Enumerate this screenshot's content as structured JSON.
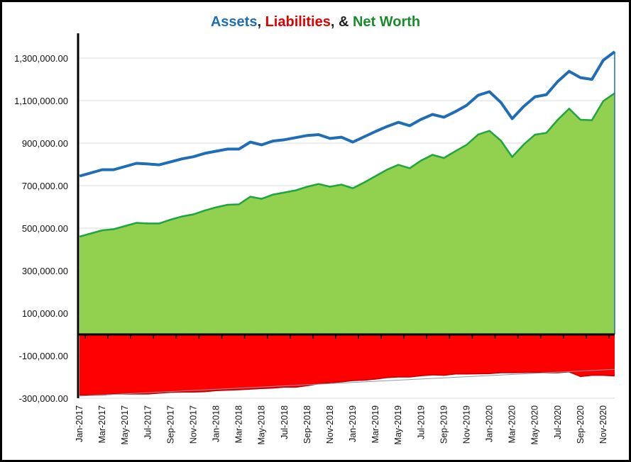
{
  "chart_data": {
    "type": "area",
    "title_parts": [
      {
        "text": "Assets",
        "color": "#1f6db5"
      },
      {
        "text": ", ",
        "color": "#222222"
      },
      {
        "text": "Liabilities",
        "color": "#e00000"
      },
      {
        "text": ", & ",
        "color": "#222222"
      },
      {
        "text": "Net Worth",
        "color": "#1a8a2a"
      }
    ],
    "xlabel": "",
    "ylabel": "",
    "ylim": [
      -300000,
      1400000
    ],
    "y_ticks": [
      1300000,
      1100000,
      900000,
      700000,
      500000,
      300000,
      100000,
      -100000,
      -300000
    ],
    "y_tick_labels": [
      "1,300,000.00",
      "1,100,000.00",
      "900,000.00",
      "700,000.00",
      "500,000.00",
      "300,000.00",
      "100,000.00",
      "-100,000.00",
      "-300,000.00"
    ],
    "x": [
      "Jan-2017",
      "Feb-2017",
      "Mar-2017",
      "Apr-2017",
      "May-2017",
      "Jun-2017",
      "Jul-2017",
      "Aug-2017",
      "Sep-2017",
      "Oct-2017",
      "Nov-2017",
      "Dec-2017",
      "Jan-2018",
      "Feb-2018",
      "Mar-2018",
      "Apr-2018",
      "May-2018",
      "Jun-2018",
      "Jul-2018",
      "Aug-2018",
      "Sep-2018",
      "Oct-2018",
      "Nov-2018",
      "Dec-2018",
      "Jan-2019",
      "Feb-2019",
      "Mar-2019",
      "Apr-2019",
      "May-2019",
      "Jun-2019",
      "Jul-2019",
      "Aug-2019",
      "Sep-2019",
      "Oct-2019",
      "Nov-2019",
      "Dec-2019",
      "Jan-2020",
      "Feb-2020",
      "Mar-2020",
      "Apr-2020",
      "May-2020",
      "Jun-2020",
      "Jul-2020",
      "Aug-2020",
      "Sep-2020",
      "Oct-2020",
      "Nov-2020",
      "Dec-2020"
    ],
    "x_tick_labels": [
      "Jan-2017",
      "Mar-2017",
      "May-2017",
      "Jul-2017",
      "Sep-2017",
      "Nov-2017",
      "Jan-2018",
      "Mar-2018",
      "May-2018",
      "Jul-2018",
      "Sep-2018",
      "Nov-2018",
      "Jan-2019",
      "Mar-2019",
      "May-2019",
      "Jul-2019",
      "Sep-2019",
      "Nov-2019",
      "Jan-2020",
      "Mar-2020",
      "May-2020",
      "Jul-2020",
      "Sep-2020",
      "Nov-2020"
    ],
    "series": [
      {
        "name": "Assets",
        "type": "line",
        "color": "#1f6db5",
        "values": [
          745000,
          760000,
          775000,
          775000,
          790000,
          805000,
          802000,
          798000,
          812000,
          826000,
          836000,
          852000,
          862000,
          872000,
          872000,
          905000,
          892000,
          910000,
          916000,
          926000,
          936000,
          940000,
          922000,
          928000,
          905000,
          930000,
          955000,
          978000,
          998000,
          982000,
          1012000,
          1035000,
          1022000,
          1048000,
          1078000,
          1125000,
          1142000,
          1092000,
          1015000,
          1072000,
          1118000,
          1128000,
          1190000,
          1238000,
          1208000,
          1200000,
          1290000,
          1330000
        ]
      },
      {
        "name": "Net Worth",
        "type": "area",
        "color": "#92d050",
        "line_color": "#1fa53f",
        "values": [
          460000,
          475000,
          490000,
          495000,
          510000,
          525000,
          522000,
          522000,
          540000,
          555000,
          565000,
          583000,
          598000,
          610000,
          612000,
          648000,
          638000,
          658000,
          668000,
          678000,
          695000,
          708000,
          695000,
          705000,
          688000,
          715000,
          745000,
          775000,
          798000,
          782000,
          818000,
          845000,
          830000,
          862000,
          892000,
          940000,
          958000,
          912000,
          835000,
          893000,
          940000,
          948000,
          1010000,
          1062000,
          1010000,
          1008000,
          1098000,
          1135000
        ]
      },
      {
        "name": "Liabilities",
        "type": "area",
        "color": "#ff0000",
        "line_color": "#c00000",
        "values": [
          -285000,
          -285000,
          -285000,
          -280000,
          -280000,
          -280000,
          -280000,
          -276000,
          -272000,
          -271000,
          -271000,
          -269000,
          -264000,
          -262000,
          -260000,
          -257000,
          -254000,
          -252000,
          -248000,
          -248000,
          -241000,
          -232000,
          -227000,
          -223000,
          -217000,
          -215000,
          -210000,
          -203000,
          -200000,
          -200000,
          -194000,
          -190000,
          -192000,
          -186000,
          -186000,
          -185000,
          -184000,
          -180000,
          -180000,
          -179000,
          -178000,
          -180000,
          -180000,
          -176000,
          -198000,
          -192000,
          -192000,
          -195000
        ]
      }
    ],
    "trendline": {
      "series": "Liabilities",
      "type": "linear",
      "color": "#8899aa"
    },
    "grid": true,
    "legend": "none"
  }
}
